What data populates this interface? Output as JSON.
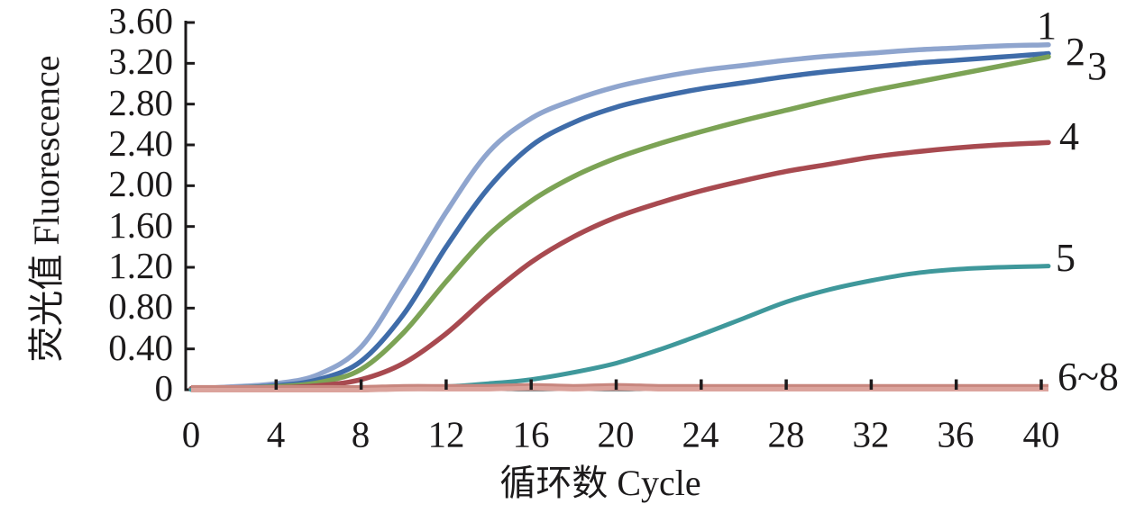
{
  "chart_data": {
    "type": "line",
    "title": "",
    "xlabel": "循环数 Cycle",
    "ylabel": "荧光值 Fluorescence",
    "xlim": [
      0,
      40
    ],
    "ylim": [
      0,
      3.6
    ],
    "grid": false,
    "legend_position": "right-end-of-line-labels",
    "x_tick_labels": [
      "0",
      "4",
      "8",
      "12",
      "16",
      "20",
      "24",
      "28",
      "32",
      "36",
      "40"
    ],
    "y_tick_labels": [
      "3.60",
      "3.20",
      "2.80",
      "2.40",
      "2.00",
      "1.60",
      "1.20",
      "0.80",
      "0.40",
      "0"
    ],
    "x": [
      0,
      2,
      4,
      6,
      8,
      10,
      12,
      14,
      16,
      18,
      20,
      22,
      24,
      26,
      28,
      30,
      32,
      34,
      36,
      38,
      40
    ],
    "series": [
      {
        "name": "1",
        "color": "#8fa5ce",
        "width": 5.5,
        "values": [
          0.01,
          0.03,
          0.06,
          0.15,
          0.42,
          1.05,
          1.74,
          2.33,
          2.66,
          2.84,
          2.97,
          3.06,
          3.13,
          3.18,
          3.23,
          3.27,
          3.3,
          3.33,
          3.35,
          3.37,
          3.38
        ]
      },
      {
        "name": "2",
        "color": "#3f6ca9",
        "width": 5.5,
        "values": [
          0.01,
          0.02,
          0.04,
          0.1,
          0.28,
          0.74,
          1.4,
          1.98,
          2.39,
          2.62,
          2.77,
          2.87,
          2.95,
          3.01,
          3.07,
          3.12,
          3.16,
          3.2,
          3.23,
          3.26,
          3.29
        ]
      },
      {
        "name": "3",
        "color": "#7ca355",
        "width": 5.5,
        "values": [
          0.01,
          0.02,
          0.03,
          0.07,
          0.2,
          0.56,
          1.06,
          1.52,
          1.85,
          2.09,
          2.27,
          2.41,
          2.53,
          2.64,
          2.74,
          2.84,
          2.93,
          3.01,
          3.09,
          3.17,
          3.25
        ]
      },
      {
        "name": "4",
        "color": "#a84a50",
        "width": 5.5,
        "values": [
          0.01,
          0.01,
          0.02,
          0.04,
          0.1,
          0.26,
          0.55,
          0.92,
          1.25,
          1.5,
          1.69,
          1.83,
          1.95,
          2.05,
          2.14,
          2.21,
          2.28,
          2.33,
          2.37,
          2.4,
          2.42
        ]
      },
      {
        "name": "5",
        "color": "#3f989b",
        "width": 5.0,
        "values": [
          0.0,
          0.0,
          0.0,
          0.01,
          0.01,
          0.02,
          0.03,
          0.06,
          0.1,
          0.17,
          0.26,
          0.39,
          0.54,
          0.7,
          0.86,
          0.98,
          1.07,
          1.14,
          1.18,
          1.2,
          1.21
        ]
      },
      {
        "name": "6~8",
        "color": "#c8877f",
        "width": 8.0,
        "values": [
          0.01,
          0.01,
          0.01,
          0.01,
          0.01,
          0.02,
          0.02,
          0.02,
          0.03,
          0.02,
          0.03,
          0.02,
          0.02,
          0.02,
          0.02,
          0.02,
          0.02,
          0.02,
          0.02,
          0.02,
          0.02
        ]
      }
    ],
    "axis_color": "#1c1a1b"
  }
}
